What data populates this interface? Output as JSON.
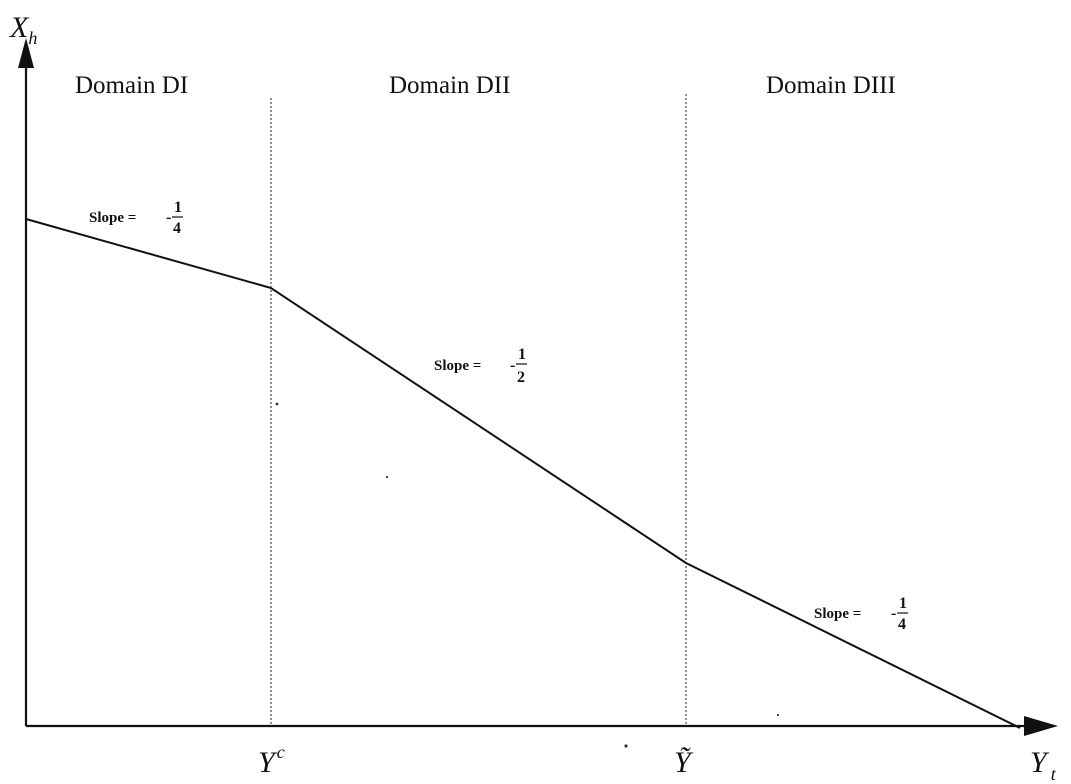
{
  "axes": {
    "y_axis": {
      "symbol": "X",
      "subscript": "h"
    },
    "x_axis": {
      "symbol": "Y",
      "subscript": "t"
    }
  },
  "domains": [
    "Domain  DI",
    "Domain  DII",
    "Domain  DIII"
  ],
  "x_ticks": [
    {
      "symbol": "Y",
      "superscript": "c"
    },
    {
      "symbol": "Ỹ",
      "superscript": ""
    }
  ],
  "slopes": [
    {
      "label": "Slope  =",
      "sign": "-",
      "numerator": "1",
      "denominator": "4"
    },
    {
      "label": "Slope  =",
      "sign": "-",
      "numerator": "1",
      "denominator": "2"
    },
    {
      "label": "Slope  =",
      "sign": "-",
      "numerator": "1",
      "denominator": "4"
    }
  ]
}
